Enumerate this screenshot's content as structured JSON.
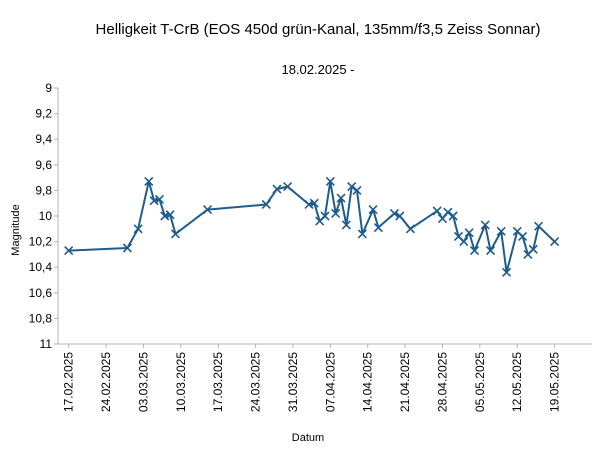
{
  "chart_data": {
    "type": "line",
    "title": "Helligkeit T-CrB (EOS 450d grün-Kanal, 135mm/f3,5 Zeiss Sonnar)",
    "subtitle": "18.02.2025 -",
    "x_label": "Datum",
    "y_label": "Magnitude",
    "color": "#1f5c8e",
    "y_inverted": true,
    "x": [
      "2025-02-17",
      "2025-02-28",
      "2025-03-02",
      "2025-03-04",
      "2025-03-05",
      "2025-03-06",
      "2025-03-07",
      "2025-03-08",
      "2025-03-09",
      "2025-03-15",
      "2025-03-26",
      "2025-03-28",
      "2025-03-30",
      "2025-04-03",
      "2025-04-04",
      "2025-04-05",
      "2025-04-06",
      "2025-04-07",
      "2025-04-08",
      "2025-04-09",
      "2025-04-10",
      "2025-04-11",
      "2025-04-12",
      "2025-04-13",
      "2025-04-15",
      "2025-04-16",
      "2025-04-19",
      "2025-04-20",
      "2025-04-22",
      "2025-04-27",
      "2025-04-28",
      "2025-04-29",
      "2025-04-30",
      "2025-05-01",
      "2025-05-02",
      "2025-05-03",
      "2025-05-04",
      "2025-05-06",
      "2025-05-07",
      "2025-05-09",
      "2025-05-10",
      "2025-05-12",
      "2025-05-13",
      "2025-05-14",
      "2025-05-15",
      "2025-05-16",
      "2025-05-19"
    ],
    "values": [
      10.27,
      10.25,
      10.1,
      9.73,
      9.88,
      9.87,
      10.0,
      9.99,
      10.14,
      9.95,
      9.91,
      9.79,
      9.77,
      9.91,
      9.9,
      10.04,
      10.0,
      9.73,
      9.98,
      9.86,
      10.07,
      9.77,
      9.8,
      10.14,
      9.95,
      10.09,
      9.98,
      10.0,
      10.1,
      9.96,
      10.02,
      9.97,
      10.0,
      10.16,
      10.2,
      10.13,
      10.27,
      10.07,
      10.27,
      10.12,
      10.44,
      10.12,
      10.16,
      10.3,
      10.26,
      10.08,
      10.2
    ],
    "xlim": [
      "2025-02-15",
      "2025-05-26"
    ],
    "xticks": [
      {
        "value": "2025-02-17",
        "label": "17.02.2025"
      },
      {
        "value": "2025-02-24",
        "label": "24.02.2025"
      },
      {
        "value": "2025-03-03",
        "label": "03.03.2025"
      },
      {
        "value": "2025-03-10",
        "label": "10.03.2025"
      },
      {
        "value": "2025-03-17",
        "label": "17.03.2025"
      },
      {
        "value": "2025-03-24",
        "label": "24.03.2025"
      },
      {
        "value": "2025-03-31",
        "label": "31.03.2025"
      },
      {
        "value": "2025-04-07",
        "label": "07.04.2025"
      },
      {
        "value": "2025-04-14",
        "label": "14.04.2025"
      },
      {
        "value": "2025-04-21",
        "label": "21.04.2025"
      },
      {
        "value": "2025-04-28",
        "label": "28.04.2025"
      },
      {
        "value": "2025-05-05",
        "label": "05.05.2025"
      },
      {
        "value": "2025-05-12",
        "label": "12.05.2025"
      },
      {
        "value": "2025-05-19",
        "label": "19.05.2025"
      }
    ],
    "ylim": [
      9,
      11
    ],
    "yticks": [
      9,
      {
        "value": 9.2,
        "label": "9,2"
      },
      {
        "value": 9.4,
        "label": "9,4"
      },
      {
        "value": 9.6,
        "label": "9,6"
      },
      {
        "value": 9.8,
        "label": "9,8"
      },
      10,
      {
        "value": 10.2,
        "label": "10,2"
      },
      {
        "value": 10.4,
        "label": "10,4"
      },
      {
        "value": 10.6,
        "label": "10,6"
      },
      {
        "value": 10.8,
        "label": "10,8"
      },
      11
    ]
  }
}
